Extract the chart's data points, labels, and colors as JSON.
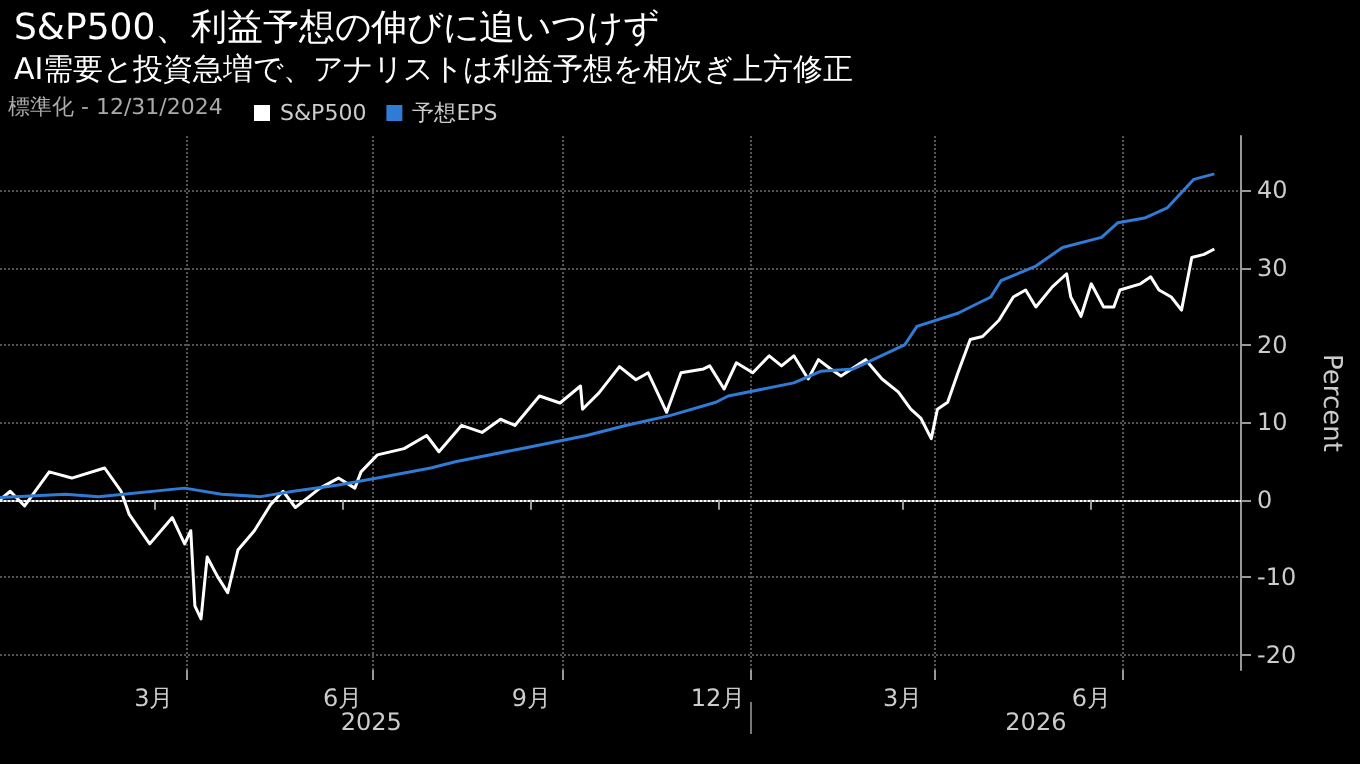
{
  "chart_data": {
    "type": "line",
    "title": "S&P500、利益予想の伸びに追いつけず",
    "subtitle": "AI需要と投資急増で、アナリストは利益予想を相次ぎ上方修正",
    "legend_title": "標準化 - 12/31/2024",
    "ylabel": "Percent",
    "legend": "top left",
    "grid": true,
    "marker": "none",
    "line_style": "solid",
    "xlim": [
      "2024-12-31",
      "2026-08-28"
    ],
    "xticks": [
      {
        "value": "2025-03-16",
        "label": "3月"
      },
      {
        "value": "2025-04-01",
        "label": null
      },
      {
        "value": "2025-06-16",
        "label": "6月"
      },
      {
        "value": "2025-07-01",
        "label": null
      },
      {
        "value": "2025-09-16",
        "label": "9月"
      },
      {
        "value": "2025-10-01",
        "label": null
      },
      {
        "value": "2025-12-16",
        "label": "12月"
      },
      {
        "value": "2026-01-01",
        "label": null
      },
      {
        "value": "2026-03-16",
        "label": "3月"
      },
      {
        "value": "2026-04-01",
        "label": null
      },
      {
        "value": "2026-06-16",
        "label": "6月"
      },
      {
        "value": "2026-07-01",
        "label": null
      }
    ],
    "x2lim": [
      "2024-12-31",
      "2026-08-28"
    ],
    "x2ticks": [
      {
        "value": "2025-06-30",
        "label": "2025"
      },
      {
        "value": "2026-01-01",
        "label": null
      },
      {
        "value": "2026-05-20",
        "label": "2026"
      }
    ],
    "ylim": [
      -22,
      47
    ],
    "yticks": [
      -20,
      -10,
      0,
      10,
      20,
      30,
      40
    ],
    "ref_lines": [
      {
        "axis": "y",
        "value": 0,
        "color": "#ffffff",
        "line_style": "dotted"
      }
    ],
    "series": [
      {
        "name": "S&P500",
        "color": "#ffffff",
        "x": [
          "2024-12-31",
          "2025-01-05",
          "2025-01-12",
          "2025-01-24",
          "2025-02-04",
          "2025-02-20",
          "2025-02-28",
          "2025-03-04",
          "2025-03-14",
          "2025-03-25",
          "2025-03-31",
          "2025-04-03",
          "2025-04-05",
          "2025-04-08",
          "2025-04-11",
          "2025-04-16",
          "2025-04-21",
          "2025-04-26",
          "2025-05-04",
          "2025-05-12",
          "2025-05-18",
          "2025-05-24",
          "2025-06-05",
          "2025-06-14",
          "2025-06-22",
          "2025-06-25",
          "2025-07-03",
          "2025-07-16",
          "2025-07-27",
          "2025-08-02",
          "2025-08-13",
          "2025-08-23",
          "2025-09-01",
          "2025-09-08",
          "2025-09-20",
          "2025-09-30",
          "2025-10-10",
          "2025-10-11",
          "2025-10-19",
          "2025-10-29",
          "2025-11-06",
          "2025-11-12",
          "2025-11-21",
          "2025-11-28",
          "2025-12-09",
          "2025-12-12",
          "2025-12-19",
          "2025-12-25",
          "2026-01-02",
          "2026-01-10",
          "2026-01-16",
          "2026-01-22",
          "2026-01-29",
          "2026-02-03",
          "2026-02-09",
          "2026-02-14",
          "2026-02-26",
          "2026-03-06",
          "2026-03-14",
          "2026-03-20",
          "2026-03-25",
          "2026-03-30",
          "2026-04-02",
          "2026-04-07",
          "2026-04-12",
          "2026-04-18",
          "2026-04-24",
          "2026-05-02",
          "2026-05-09",
          "2026-05-15",
          "2026-05-20",
          "2026-05-28",
          "2026-06-04",
          "2026-06-06",
          "2026-06-11",
          "2026-06-16",
          "2026-06-22",
          "2026-06-27",
          "2026-06-30",
          "2026-07-10",
          "2026-07-15",
          "2026-07-19",
          "2026-07-25",
          "2026-07-30",
          "2026-08-04",
          "2026-08-10",
          "2026-08-15"
        ],
        "values": [
          0,
          1.1,
          -0.8,
          3.6,
          2.8,
          4.1,
          1.1,
          -1.9,
          -5.7,
          -2.3,
          -5.7,
          -4.0,
          -13.7,
          -15.4,
          -7.4,
          -9.9,
          -12.0,
          -6.5,
          -4.0,
          -0.6,
          1.1,
          -1.0,
          1.5,
          2.8,
          1.5,
          3.6,
          5.8,
          6.6,
          8.3,
          6.2,
          9.6,
          8.7,
          10.4,
          9.6,
          13.4,
          12.5,
          14.7,
          11.7,
          13.8,
          17.2,
          15.5,
          16.4,
          11.3,
          16.4,
          16.9,
          17.3,
          14.3,
          17.7,
          16.4,
          18.6,
          17.3,
          18.6,
          15.6,
          18.1,
          16.9,
          16.0,
          18.1,
          15.6,
          13.9,
          11.7,
          10.5,
          7.9,
          11.7,
          12.6,
          16.4,
          20.7,
          21.1,
          23.2,
          26.2,
          27.1,
          24.9,
          27.5,
          29.2,
          26.2,
          23.7,
          27.9,
          24.9,
          24.9,
          27.1,
          27.9,
          28.8,
          27.1,
          26.2,
          24.5,
          31.3,
          31.7,
          32.4
        ]
      },
      {
        "name": "予想EPS",
        "color": "#2f7bd6",
        "x": [
          "2024-12-31",
          "2025-02-01",
          "2025-02-17",
          "2025-03-31",
          "2025-04-18",
          "2025-05-07",
          "2025-05-23",
          "2025-06-14",
          "2025-07-03",
          "2025-07-29",
          "2025-08-10",
          "2025-09-11",
          "2025-10-13",
          "2025-11-01",
          "2025-11-23",
          "2025-12-15",
          "2025-12-21",
          "2026-01-22",
          "2026-02-04",
          "2026-02-20",
          "2026-03-17",
          "2026-03-23",
          "2026-04-12",
          "2026-04-28",
          "2026-05-03",
          "2026-05-20",
          "2026-06-02",
          "2026-06-21",
          "2026-06-29",
          "2026-07-12",
          "2026-07-23",
          "2026-08-05",
          "2026-08-15"
        ],
        "values": [
          0.3,
          0.7,
          0.4,
          1.5,
          0.7,
          0.4,
          1.1,
          1.9,
          2.8,
          4.1,
          4.9,
          6.6,
          8.3,
          9.6,
          10.9,
          12.6,
          13.4,
          15.1,
          16.6,
          16.9,
          20.0,
          22.4,
          24.1,
          26.2,
          28.3,
          30.2,
          32.6,
          33.9,
          35.8,
          36.4,
          37.7,
          41.4,
          42.1
        ]
      }
    ]
  }
}
